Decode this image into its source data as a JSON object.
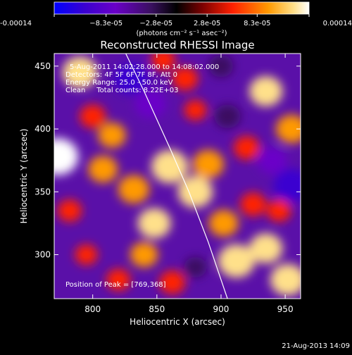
{
  "chart_data": {
    "type": "heatmap",
    "title": "Reconstructed RHESSI Image",
    "xlabel": "Heliocentric X (arcsec)",
    "ylabel": "Heliocentric Y (arcsec)",
    "xlim": [
      770,
      962
    ],
    "ylim": [
      265,
      460
    ],
    "x_ticks": [
      800,
      850,
      900,
      950
    ],
    "y_ticks": [
      300,
      350,
      400,
      450
    ],
    "colorbar": {
      "min": -0.00014,
      "max": 0.00014,
      "tick_values": [
        -0.00014,
        -8.3e-05,
        -2.8e-05,
        2.8e-05,
        8.3e-05,
        0.00014
      ],
      "tick_labels": [
        "-0.00014",
        "−8.3e-05",
        "−2.8e-05",
        "2.8e-05",
        "8.3e-05",
        "0.00014"
      ],
      "unit_label": "(photons cm⁻² s⁻¹ asec⁻²)",
      "colors": [
        "#0000ff",
        "#3a00d0",
        "#6a00c8",
        "#3a1060",
        "#000000",
        "#7a0000",
        "#ff2000",
        "#ff9a00",
        "#ffe08a",
        "#ffffff"
      ]
    },
    "annotations": [
      "5-Aug-2011 14:02:28.000 to 14:08:02.000",
      "Detectors: 4F 5F 6F 7F 8F, Att 0",
      "Energy Range: 25.0 - 50.0 keV",
      "Clean     Total counts: 8.22E+03",
      "Position of Peak = [769,368]"
    ],
    "limb_curve": {
      "x": [
        821,
        840,
        860,
        875,
        890,
        905
      ],
      "y": [
        470,
        430,
        385,
        350,
        310,
        265
      ]
    },
    "sources": [
      {
        "x": 773,
        "y": 378,
        "value": 0.00014
      },
      {
        "x": 790,
        "y": 445,
        "value": 0.00011
      },
      {
        "x": 800,
        "y": 410,
        "value": 6e-05
      },
      {
        "x": 808,
        "y": 368,
        "value": 8e-05
      },
      {
        "x": 815,
        "y": 395,
        "value": 7e-05
      },
      {
        "x": 832,
        "y": 352,
        "value": 9e-05
      },
      {
        "x": 848,
        "y": 325,
        "value": 0.0001
      },
      {
        "x": 860,
        "y": 370,
        "value": 0.00012
      },
      {
        "x": 880,
        "y": 350,
        "value": 0.00011
      },
      {
        "x": 890,
        "y": 372,
        "value": 9e-05
      },
      {
        "x": 902,
        "y": 325,
        "value": 8e-05
      },
      {
        "x": 912,
        "y": 295,
        "value": 0.00012
      },
      {
        "x": 935,
        "y": 305,
        "value": 0.0001
      },
      {
        "x": 952,
        "y": 280,
        "value": 0.00011
      },
      {
        "x": 925,
        "y": 340,
        "value": 6e-05
      },
      {
        "x": 945,
        "y": 335,
        "value": 5e-05
      },
      {
        "x": 935,
        "y": 430,
        "value": 0.0001
      },
      {
        "x": 955,
        "y": 400,
        "value": 9e-05
      },
      {
        "x": 920,
        "y": 385,
        "value": 6e-05
      },
      {
        "x": 872,
        "y": 440,
        "value": 6e-05
      },
      {
        "x": 880,
        "y": 415,
        "value": 4e-05
      },
      {
        "x": 855,
        "y": 455,
        "value": 5e-05
      },
      {
        "x": 840,
        "y": 300,
        "value": 7e-05
      },
      {
        "x": 820,
        "y": 280,
        "value": 5e-05
      },
      {
        "x": 862,
        "y": 278,
        "value": 6e-05
      },
      {
        "x": 795,
        "y": 300,
        "value": 4e-05
      },
      {
        "x": 782,
        "y": 335,
        "value": 5e-05
      },
      {
        "x": 845,
        "y": 420,
        "value": -9e-05
      },
      {
        "x": 830,
        "y": 440,
        "value": -0.00011
      },
      {
        "x": 905,
        "y": 410,
        "value": -6e-05
      },
      {
        "x": 955,
        "y": 355,
        "value": -0.00012
      },
      {
        "x": 940,
        "y": 375,
        "value": -8e-05
      },
      {
        "x": 900,
        "y": 450,
        "value": -5e-05
      },
      {
        "x": 880,
        "y": 290,
        "value": -4e-05
      }
    ],
    "timestamp": "21-Aug-2013 14:09"
  }
}
